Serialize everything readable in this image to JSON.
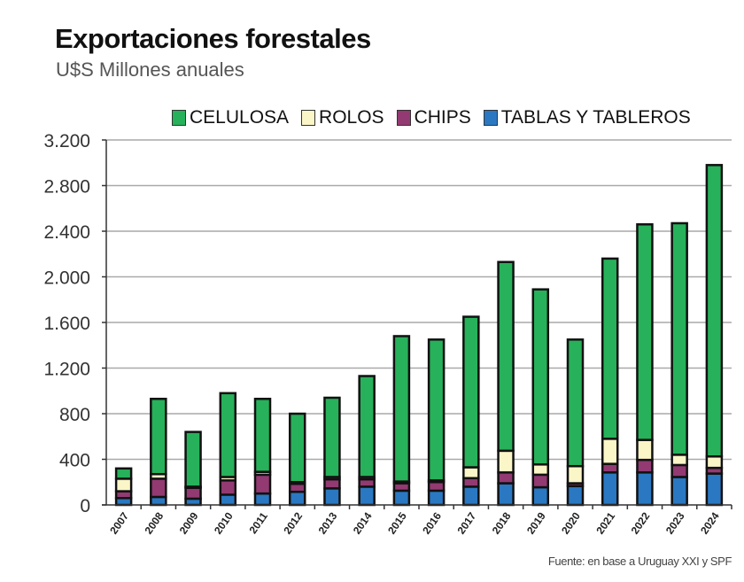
{
  "header": {
    "title": "Exportaciones forestales",
    "subtitle": "U$S Millones anuales"
  },
  "legend": [
    {
      "label": "CELULOSA",
      "color": "#27b15a"
    },
    {
      "label": "ROLOS",
      "color": "#fbf6c8"
    },
    {
      "label": "CHIPS",
      "color": "#933a72"
    },
    {
      "label": "TABLAS Y TABLEROS",
      "color": "#2a78c2"
    }
  ],
  "source": "Fuente: en base a Uruguay XXI y SPF",
  "chart_data": {
    "type": "bar",
    "stacked": true,
    "title": "Exportaciones forestales",
    "subtitle": "U$S Millones anuales",
    "xlabel": "",
    "ylabel": "U$S Millones anuales",
    "ylim": [
      0,
      3200
    ],
    "yticks": [
      0,
      400,
      800,
      1200,
      1600,
      2000,
      2400,
      2800,
      3200
    ],
    "ytick_labels": [
      "0",
      "400",
      "800",
      "1.200",
      "1.600",
      "2.000",
      "2.400",
      "2.800",
      "3.200"
    ],
    "grid": true,
    "legend_position": "top",
    "categories": [
      "2007",
      "2008",
      "2009",
      "2010",
      "2011",
      "2012",
      "2013",
      "2014",
      "2015",
      "2016",
      "2017",
      "2018",
      "2019",
      "2020",
      "2021",
      "2022",
      "2023",
      "2024"
    ],
    "series": [
      {
        "name": "TABLAS Y TABLEROS",
        "color": "#2a78c2",
        "values": [
          60,
          70,
          55,
          90,
          100,
          115,
          145,
          160,
          125,
          125,
          160,
          190,
          155,
          165,
          285,
          285,
          245,
          275
        ]
      },
      {
        "name": "CHIPS",
        "color": "#933a72",
        "values": [
          60,
          160,
          95,
          125,
          165,
          70,
          80,
          65,
          65,
          75,
          75,
          95,
          110,
          25,
          75,
          110,
          105,
          50
        ]
      },
      {
        "name": "ROLOS",
        "color": "#fbf6c8",
        "values": [
          110,
          40,
          10,
          30,
          25,
          15,
          20,
          20,
          15,
          15,
          95,
          190,
          90,
          150,
          220,
          175,
          90,
          100
        ]
      },
      {
        "name": "CELULOSA",
        "color": "#27b15a",
        "values": [
          90,
          660,
          480,
          735,
          640,
          600,
          695,
          885,
          1275,
          1235,
          1320,
          1655,
          1535,
          1110,
          1580,
          1890,
          2030,
          2555
        ]
      }
    ]
  }
}
